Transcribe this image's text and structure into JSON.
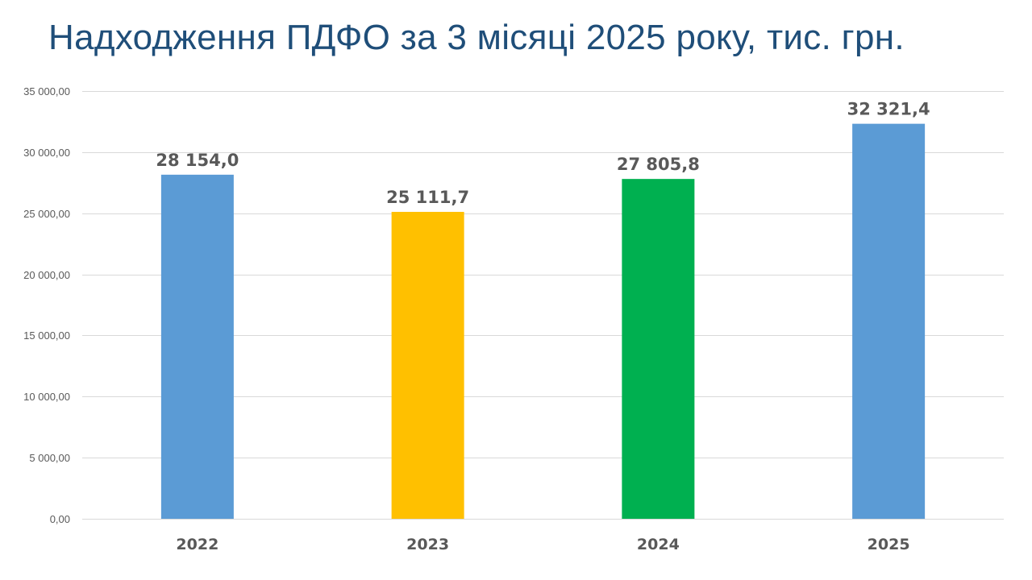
{
  "chart_data": {
    "type": "bar",
    "title": "Надходження ПДФО за 3 місяці 2025 року, тис. грн.",
    "categories": [
      "2022",
      "2023",
      "2024",
      "2025"
    ],
    "values": [
      28154.0,
      25111.7,
      27805.8,
      32321.4
    ],
    "value_labels": [
      "28 154,0",
      "25 111,7",
      "27 805,8",
      "32 321,4"
    ],
    "bar_colors": [
      "#5B9BD5",
      "#FFC000",
      "#00B050",
      "#5B9BD5"
    ],
    "xlabel": "",
    "ylabel": "",
    "ylim": [
      0,
      35000
    ],
    "yticks": [
      0,
      5000,
      10000,
      15000,
      20000,
      25000,
      30000,
      35000
    ],
    "ytick_labels": [
      "0,00",
      "5 000,00",
      "10 000,00",
      "15 000,00",
      "20 000,00",
      "25 000,00",
      "30 000,00",
      "35 000,00"
    ],
    "grid": true,
    "legend": "none"
  },
  "colors": {
    "title": "#1F4E79",
    "text": "#595959",
    "grid": "#D9D9D9"
  }
}
